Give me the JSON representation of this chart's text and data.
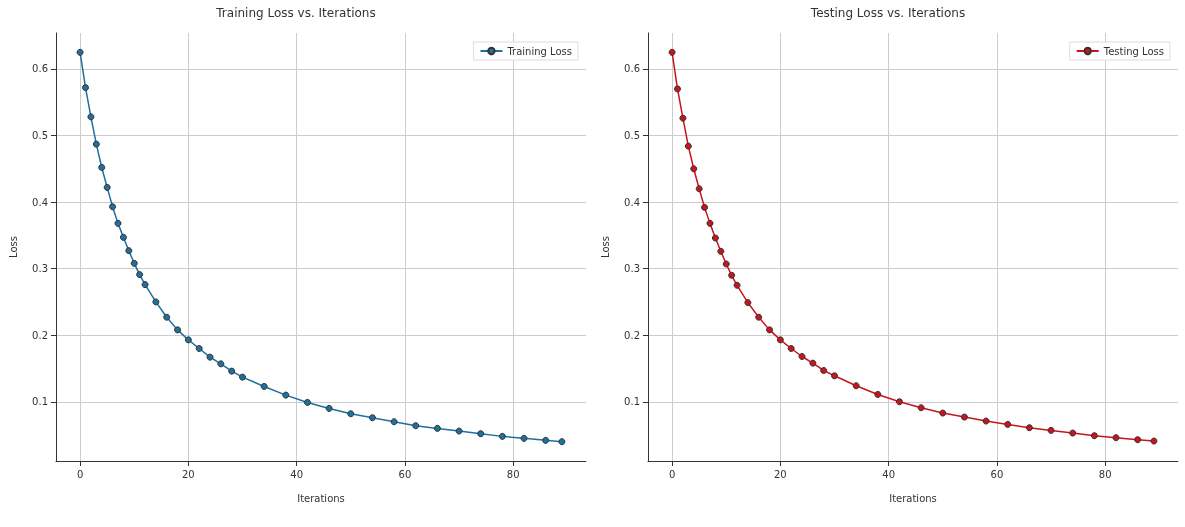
{
  "chart_data": [
    {
      "type": "line",
      "title": "Training Loss vs. Iterations",
      "xlabel": "Iterations",
      "ylabel": "Loss",
      "x": [
        0,
        1,
        2,
        3,
        4,
        5,
        6,
        7,
        8,
        9,
        10,
        11,
        12,
        14,
        16,
        18,
        20,
        22,
        24,
        26,
        28,
        30,
        34,
        38,
        42,
        46,
        50,
        54,
        58,
        62,
        66,
        70,
        74,
        78,
        82,
        86,
        89
      ],
      "series": [
        {
          "name": "Training Loss",
          "color": "#1f6f9f",
          "values": [
            0.625,
            0.572,
            0.528,
            0.487,
            0.452,
            0.422,
            0.393,
            0.368,
            0.347,
            0.327,
            0.308,
            0.291,
            0.276,
            0.25,
            0.227,
            0.208,
            0.193,
            0.18,
            0.167,
            0.157,
            0.146,
            0.137,
            0.123,
            0.11,
            0.099,
            0.09,
            0.082,
            0.076,
            0.07,
            0.064,
            0.06,
            0.056,
            0.052,
            0.048,
            0.045,
            0.042,
            0.04
          ]
        }
      ],
      "xlim": [
        -4.45,
        93.45
      ],
      "xticks": [
        0,
        20,
        40,
        60,
        80
      ],
      "ylim": [
        0.011,
        0.654
      ],
      "yticks": [
        0.1,
        0.2,
        0.3,
        0.4,
        0.5,
        0.6
      ],
      "grid": true,
      "legend": "top right",
      "marker": "circle",
      "line_style": "solid"
    },
    {
      "type": "line",
      "title": "Testing Loss vs. Iterations",
      "xlabel": "Iterations",
      "ylabel": "Loss",
      "x": [
        0,
        1,
        2,
        3,
        4,
        5,
        6,
        7,
        8,
        9,
        10,
        11,
        12,
        14,
        16,
        18,
        20,
        22,
        24,
        26,
        28,
        30,
        34,
        38,
        42,
        46,
        50,
        54,
        58,
        62,
        66,
        70,
        74,
        78,
        82,
        86,
        89
      ],
      "series": [
        {
          "name": "Testing Loss",
          "color": "#c8141c",
          "values": [
            0.625,
            0.57,
            0.526,
            0.484,
            0.45,
            0.42,
            0.392,
            0.368,
            0.346,
            0.326,
            0.307,
            0.29,
            0.275,
            0.249,
            0.227,
            0.208,
            0.193,
            0.18,
            0.168,
            0.158,
            0.147,
            0.139,
            0.124,
            0.111,
            0.1,
            0.091,
            0.083,
            0.077,
            0.071,
            0.066,
            0.061,
            0.057,
            0.053,
            0.049,
            0.046,
            0.043,
            0.041
          ]
        }
      ],
      "xlim": [
        -4.45,
        93.45
      ],
      "xticks": [
        0,
        20,
        40,
        60,
        80
      ],
      "ylim": [
        0.011,
        0.654
      ],
      "yticks": [
        0.1,
        0.2,
        0.3,
        0.4,
        0.5,
        0.6
      ],
      "grid": true,
      "legend": "top right",
      "marker": "circle",
      "line_style": "solid"
    }
  ]
}
